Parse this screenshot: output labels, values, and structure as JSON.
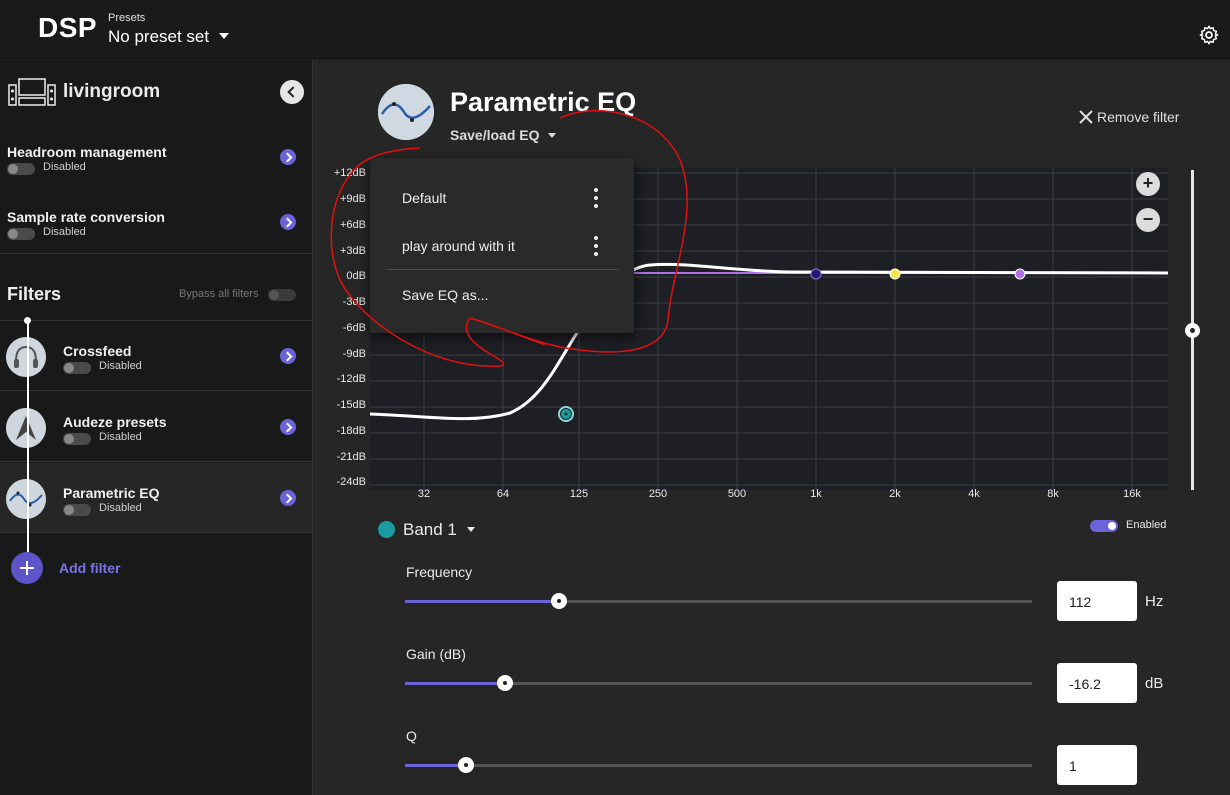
{
  "header": {
    "app_title": "DSP",
    "presets_label": "Presets",
    "presets_value": "No preset set"
  },
  "sidebar": {
    "device_name": "livingroom",
    "settings": [
      {
        "title": "Headroom management",
        "state": "Disabled"
      },
      {
        "title": "Sample rate conversion",
        "state": "Disabled"
      }
    ],
    "filters_heading": "Filters",
    "bypass_label": "Bypass all filters",
    "filters": [
      {
        "title": "Crossfeed",
        "state": "Disabled"
      },
      {
        "title": "Audeze presets",
        "state": "Disabled"
      },
      {
        "title": "Parametric EQ",
        "state": "Disabled"
      }
    ],
    "add_filter": "Add filter"
  },
  "main": {
    "title": "Parametric EQ",
    "saveload": "Save/load EQ",
    "remove_filter": "Remove filter",
    "graph": {
      "y_labels": [
        "+12dB",
        "+9dB",
        "+6dB",
        "+3dB",
        "0dB",
        "-3dB",
        "-6dB",
        "-9dB",
        "-12dB",
        "-15dB",
        "-18dB",
        "-21dB",
        "-24dB"
      ],
      "x_labels": [
        "32",
        "64",
        "125",
        "250",
        "500",
        "1k",
        "2k",
        "4k",
        "8k",
        "16k"
      ],
      "zoom_in": "+",
      "zoom_out": "−"
    },
    "band": {
      "label": "Band 1",
      "enabled_label": "Enabled",
      "color": "#1b9aa0"
    },
    "params": [
      {
        "label": "Frequency",
        "value": "112",
        "unit": "Hz",
        "fraction": 0.245
      },
      {
        "label": "Gain (dB)",
        "value": "-16.2",
        "unit": "dB",
        "fraction": 0.16
      },
      {
        "label": "Q",
        "value": "1",
        "unit": "",
        "fraction": 0.097
      }
    ]
  },
  "menu": {
    "items": [
      "Default",
      "play around with it"
    ],
    "save_as": "Save EQ as..."
  },
  "colors": {
    "accent": "#6b63d8",
    "band1": "#1b9aa0",
    "band_point_2": "#2a1670",
    "band_point_3": "#f0e64a",
    "band_point_4": "#b070e8"
  }
}
